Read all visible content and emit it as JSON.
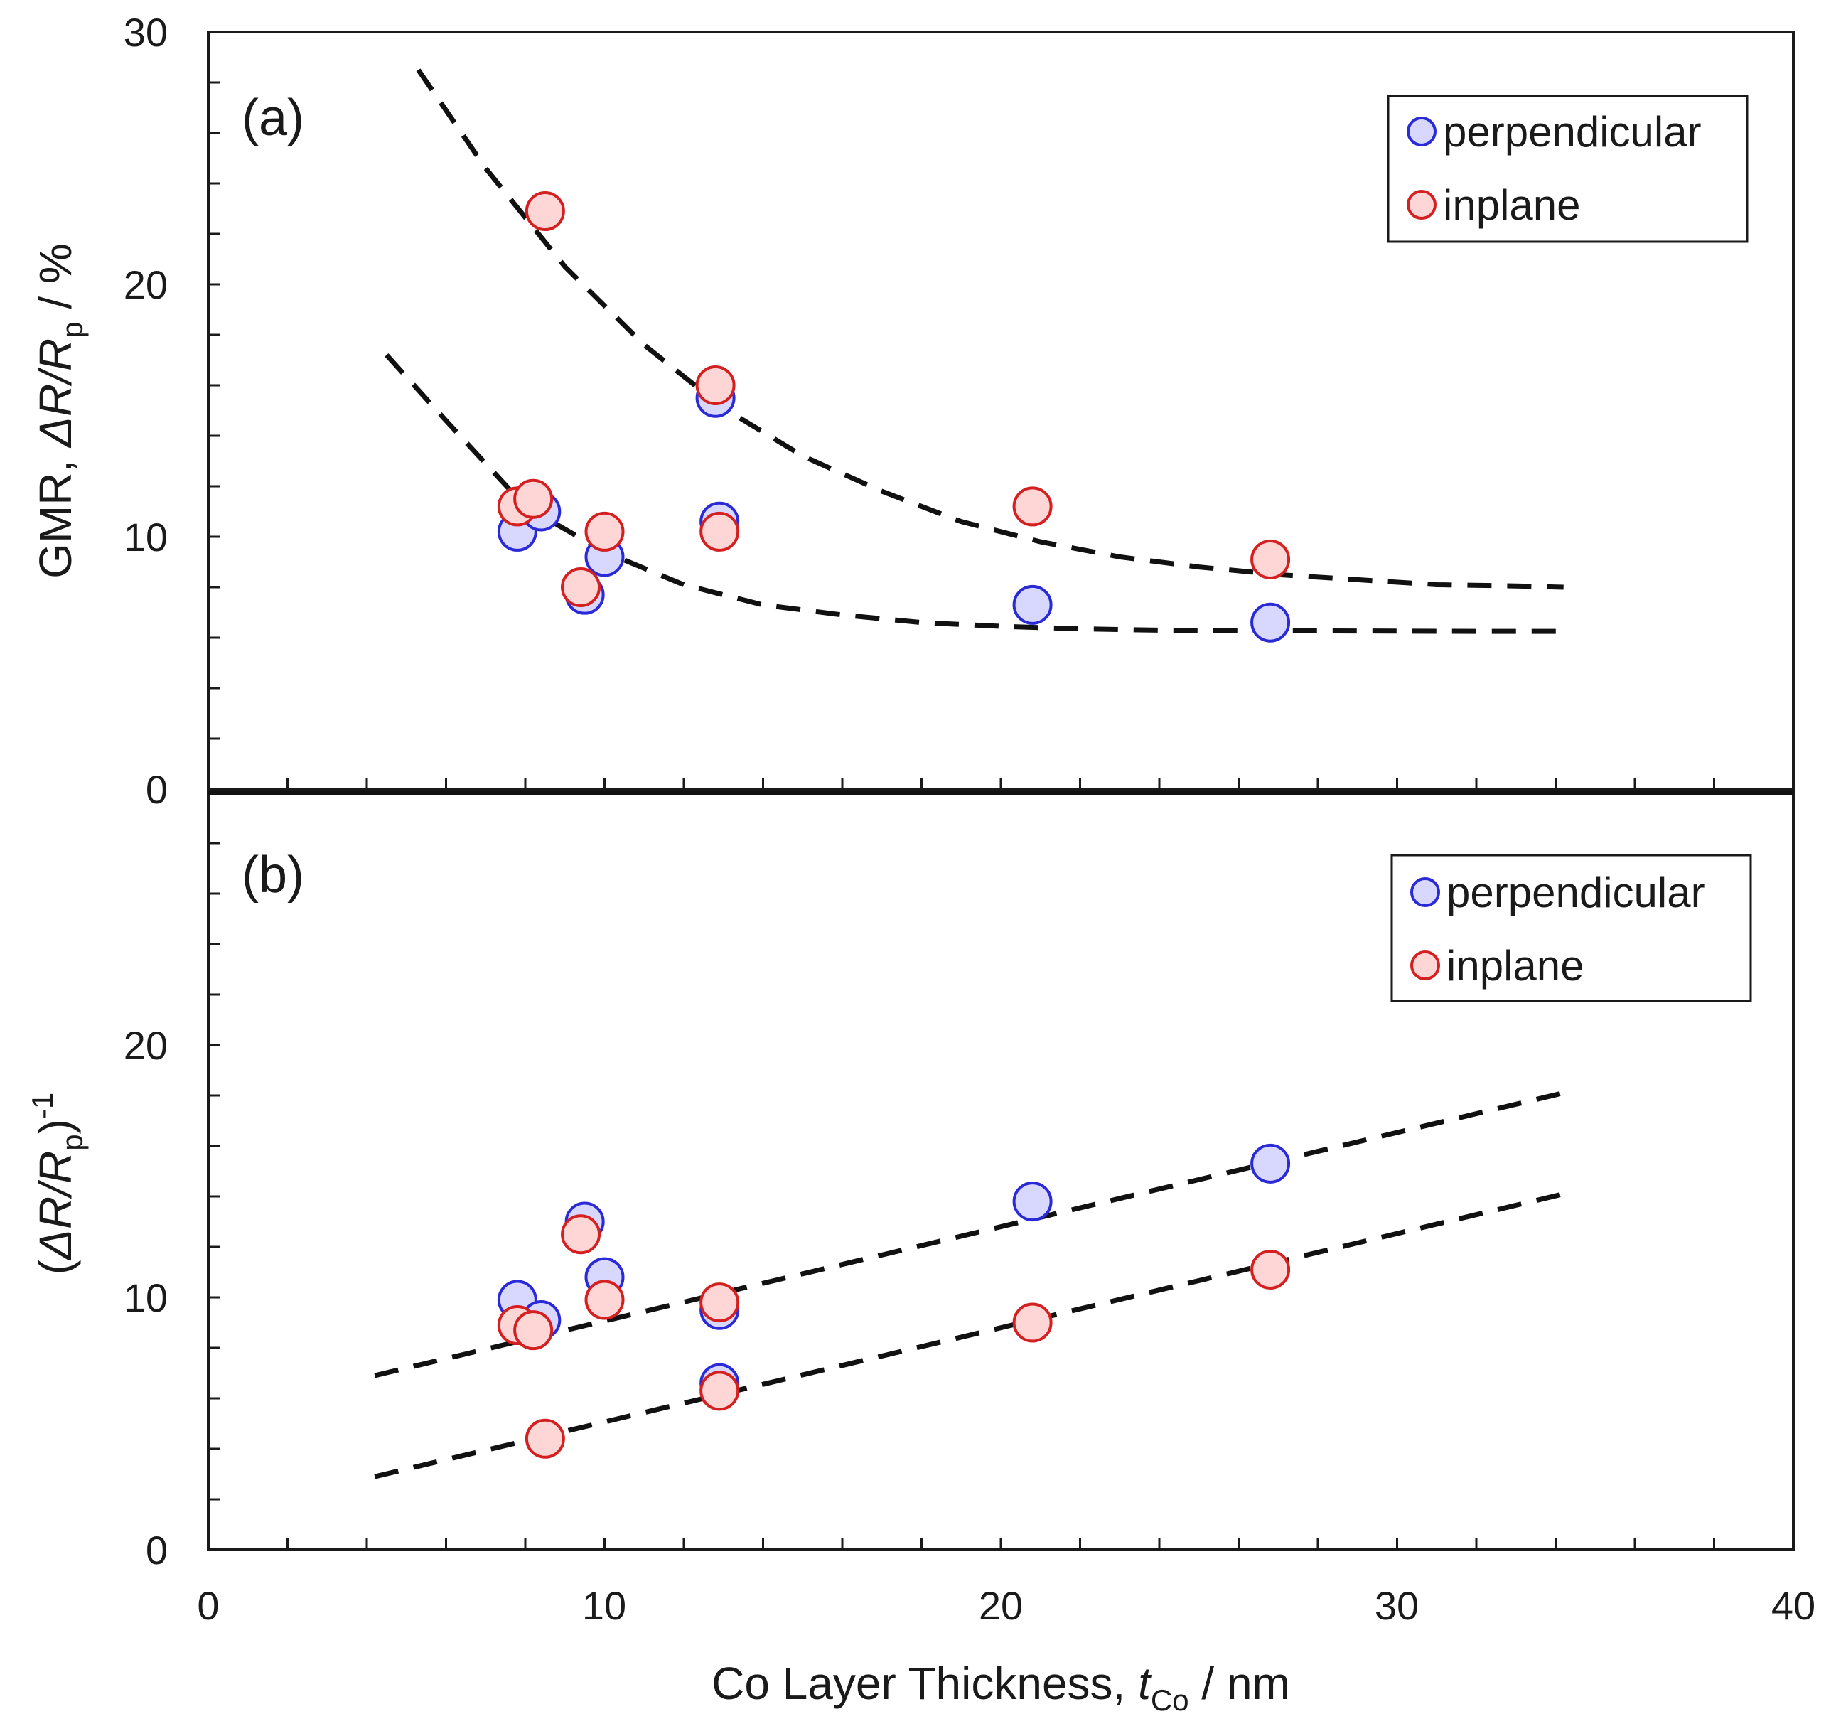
{
  "chart_data": [
    {
      "panel": "(a)",
      "type": "scatter",
      "xlabel": "Co Layer Thickness, tCo / nm",
      "ylabel": "GMR, ΔR/Rp / %",
      "xlim": [
        0,
        40
      ],
      "ylim": [
        0,
        30
      ],
      "yticks": [
        "0",
        "10",
        "20",
        "30"
      ],
      "legend": [
        "perpendicular",
        "inplane"
      ],
      "legend_position": "top-right",
      "series": [
        {
          "name": "perpendicular",
          "color": "#2a2ad6",
          "fill": "#d8d8ff",
          "x": [
            7.8,
            8.4,
            9.5,
            10.0,
            12.8,
            12.9,
            20.8,
            26.8
          ],
          "y": [
            10.2,
            11.0,
            7.7,
            9.2,
            15.5,
            10.6,
            7.3,
            6.6
          ]
        },
        {
          "name": "inplane",
          "color": "#d42020",
          "fill": "#ffd6d6",
          "x": [
            7.8,
            8.2,
            8.5,
            9.4,
            10.0,
            12.8,
            12.9,
            20.8,
            26.8
          ],
          "y": [
            11.2,
            11.5,
            22.9,
            8.0,
            10.2,
            16.0,
            10.2,
            11.2,
            9.1
          ]
        }
      ],
      "fits": [
        {
          "x": [
            5.3,
            7,
            9,
            11,
            13,
            15,
            17,
            19,
            21,
            23,
            25,
            27,
            29,
            31,
            33,
            34.2
          ],
          "y": [
            28.5,
            24.6,
            20.7,
            17.6,
            15.1,
            13.2,
            11.8,
            10.6,
            9.8,
            9.2,
            8.8,
            8.5,
            8.3,
            8.1,
            8.05,
            8.0
          ]
        },
        {
          "x": [
            4.5,
            6,
            8,
            10,
            12,
            14,
            16,
            18,
            20,
            22,
            24,
            26,
            28,
            30,
            32,
            34.2
          ],
          "y": [
            17.2,
            14.6,
            11.2,
            9.4,
            8.1,
            7.3,
            6.9,
            6.6,
            6.45,
            6.35,
            6.3,
            6.28,
            6.27,
            6.26,
            6.25,
            6.25
          ]
        }
      ]
    },
    {
      "panel": "(b)",
      "type": "scatter",
      "xlabel": "Co Layer Thickness, tCo / nm",
      "ylabel": "(ΔR/Rp)-1",
      "xlim": [
        0,
        40
      ],
      "ylim": [
        0,
        30
      ],
      "xticks": [
        "0",
        "10",
        "20",
        "30",
        "40"
      ],
      "yticks": [
        "0",
        "10",
        "20"
      ],
      "legend": [
        "perpendicular",
        "inplane"
      ],
      "legend_position": "top-right",
      "series": [
        {
          "name": "perpendicular",
          "color": "#2a2ad6",
          "fill": "#d8d8ff",
          "x": [
            7.8,
            8.4,
            9.5,
            10.0,
            12.9,
            12.9,
            20.8,
            26.8
          ],
          "y": [
            9.9,
            9.1,
            13.0,
            10.8,
            9.5,
            6.6,
            13.8,
            15.3
          ]
        },
        {
          "name": "inplane",
          "color": "#d42020",
          "fill": "#ffd6d6",
          "x": [
            7.8,
            8.2,
            8.5,
            9.4,
            10.0,
            12.9,
            12.9,
            20.8,
            26.8
          ],
          "y": [
            8.9,
            8.7,
            4.4,
            12.5,
            9.9,
            9.8,
            6.3,
            9.0,
            11.1
          ]
        }
      ],
      "fits": [
        {
          "x": [
            4.2,
            34.2
          ],
          "y": [
            6.9,
            18.1
          ]
        },
        {
          "x": [
            4.2,
            34.2
          ],
          "y": [
            2.9,
            14.1
          ]
        }
      ]
    }
  ],
  "labels": {
    "panel_a": "(a)",
    "panel_b": "(b)",
    "x_title_main": "Co Layer Thickness, ",
    "x_title_var": "t",
    "x_title_sub": "Co",
    "x_title_unit": " / nm",
    "ya_prefix": "GMR, ",
    "ya_delta": "ΔR/R",
    "ya_sub": "p",
    "ya_unit": " / %",
    "yb_open": "(",
    "yb_delta": "ΔR/R",
    "yb_sub": "p",
    "yb_close": ")",
    "yb_sup": "-1",
    "legend_perp": "perpendicular",
    "legend_inplane": "inplane"
  }
}
